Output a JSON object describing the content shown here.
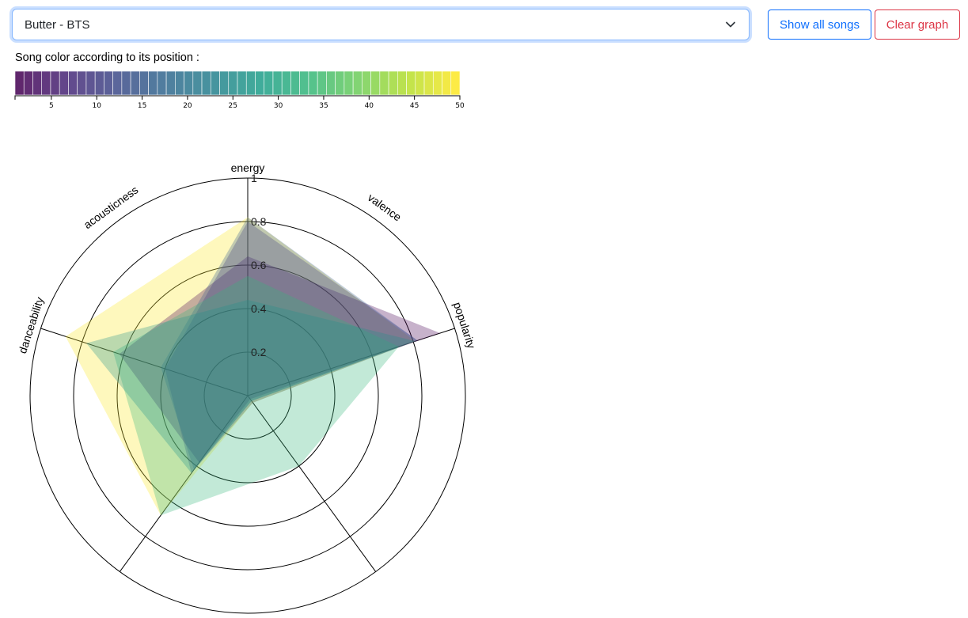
{
  "song_select": {
    "value": "Butter - BTS"
  },
  "buttons": {
    "show_all": "Show all songs",
    "clear_graph": "Clear graph"
  },
  "legend": {
    "title": "Song color according to its position :",
    "min": 1,
    "max": 50,
    "ticks": [
      "5",
      "10",
      "15",
      "20",
      "25",
      "30",
      "35",
      "40",
      "45",
      "50"
    ]
  },
  "chart_data": {
    "type": "radar",
    "axes": [
      "energy",
      "popularity",
      "acousticness",
      "valence",
      "danceability"
    ],
    "levels": [
      "0.2",
      "0.4",
      "0.6",
      "0.8",
      "1"
    ],
    "range": [
      0,
      1
    ],
    "series": [
      {
        "position": 50,
        "color": "#fde725",
        "values": [
          0.82,
          0.81,
          0.04,
          0.68,
          0.88
        ]
      },
      {
        "position": 1,
        "color": "#440154",
        "values": [
          0.64,
          0.93,
          0.02,
          0.38,
          0.62
        ]
      },
      {
        "position": 8,
        "color": "#46327e",
        "values": [
          0.8,
          0.82,
          0.04,
          0.44,
          0.4
        ]
      },
      {
        "position": 18,
        "color": "#365c8d",
        "values": [
          0.82,
          0.82,
          0.03,
          0.42,
          0.42
        ]
      },
      {
        "position": 32,
        "color": "#35b779",
        "values": [
          0.55,
          0.73,
          0.4,
          0.68,
          0.65
        ]
      },
      {
        "position": 27,
        "color": "#21918c",
        "values": [
          0.44,
          0.81,
          0.03,
          0.44,
          0.78
        ]
      }
    ]
  }
}
